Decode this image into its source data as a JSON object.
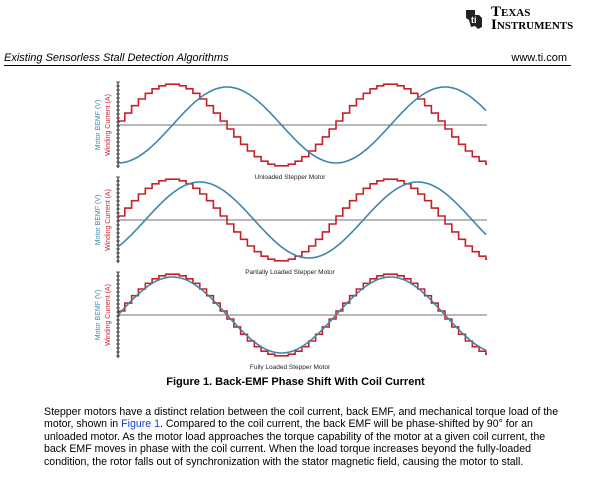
{
  "header": {
    "company": "Texas Instruments",
    "section": "Existing Sensorless Stall Detection Algorithms",
    "url": "www.ti.com"
  },
  "figure": {
    "panels": [
      {
        "y_label_bemf": "Motor BEMF (V)",
        "y_label_current": "Winding Current (A)",
        "caption": "Unloaded Stepper Motor"
      },
      {
        "y_label_bemf": "Motor BEMF (V)",
        "y_label_current": "Winding Current (A)",
        "caption": "Partially Loaded Stepper Motor"
      },
      {
        "y_label_bemf": "Motor BEMF (V)",
        "y_label_current": "Winding Current (A)",
        "caption": "Fully Loaded Stepper Motor"
      }
    ],
    "title": "Figure 1. Back-EMF Phase Shift With Coil Current"
  },
  "paragraph": {
    "before_link": "Stepper motors have a distinct relation between the coil current, back EMF, and mechanical torque load of the motor, shown in ",
    "link": "Figure 1",
    "after_link": ". Compared to the coil current, the back EMF will be phase-shifted by 90° for an unloaded motor. As the motor load approaches the torque capability of the motor at a given coil current, the back EMF moves in phase with the coil current. When the load torque increases beyond the fully-loaded condition, the rotor falls out of synchronization with the stator magnetic field, causing the motor to stall."
  }
}
